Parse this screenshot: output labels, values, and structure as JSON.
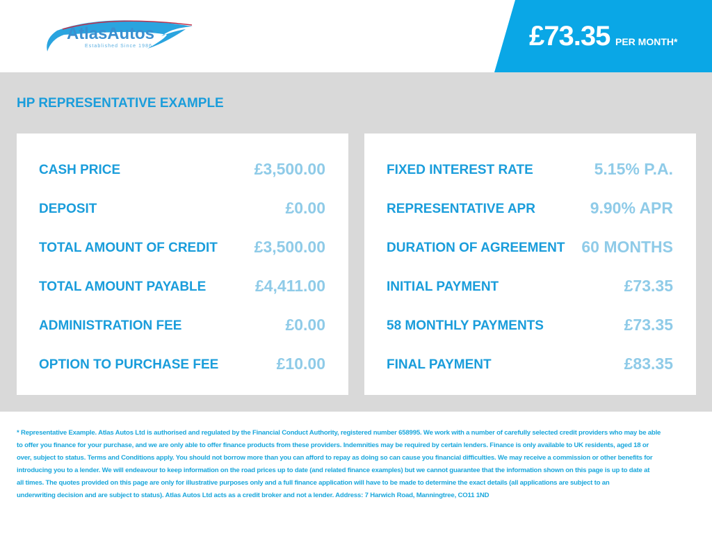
{
  "logo": {
    "name": "AtlasAutos",
    "tagline": "Established Since 1986"
  },
  "banner": {
    "price": "£73.35",
    "suffix": "PER MONTH*"
  },
  "title": "HP REPRESENTATIVE EXAMPLE",
  "left": [
    {
      "label": "CASH PRICE",
      "value": "£3,500.00"
    },
    {
      "label": "DEPOSIT",
      "value": "£0.00"
    },
    {
      "label": "TOTAL AMOUNT OF CREDIT",
      "value": "£3,500.00"
    },
    {
      "label": "TOTAL AMOUNT PAYABLE",
      "value": "£4,411.00"
    },
    {
      "label": "ADMINISTRATION FEE",
      "value": "£0.00"
    },
    {
      "label": "OPTION TO PURCHASE FEE",
      "value": "£10.00"
    }
  ],
  "right": [
    {
      "label": "FIXED INTEREST RATE",
      "value": "5.15% P.A."
    },
    {
      "label": "REPRESENTATIVE APR",
      "value": "9.90% APR"
    },
    {
      "label": "DURATION OF AGREEMENT",
      "value": "60 MONTHS"
    },
    {
      "label": "INITIAL PAYMENT",
      "value": "£73.35"
    },
    {
      "label": "58 MONTHLY PAYMENTS",
      "value": "£73.35"
    },
    {
      "label": "FINAL PAYMENT",
      "value": "£83.35"
    }
  ],
  "disclaimer": [
    "* Representative Example. Atlas Autos Ltd is authorised and regulated by the Financial Conduct Authority, registered number 658995. We work with a number of carefully selected credit providers who may be able",
    "to offer you finance for your purchase, and we are only able to offer finance products from these providers. Indemnities may be required by certain lenders. Finance is only available to UK residents, aged 18 or",
    "over, subject to status. Terms and Conditions apply. You should not borrow more than you can afford to repay as doing so can cause you financial difficulties. We may receive a commission or other benefits for",
    "introducing you to a lender. We will endeavour to keep information on the road prices up to date (and related finance examples) but we cannot guarantee that the information shown on this page is up to date at",
    "all times. The quotes provided on this page are only for illustrative purposes only and a full finance application will have to be made to determine the exact details (all applications are subject to an",
    "underwriting decision and are subject to status). Atlas Autos Ltd acts as a credit broker and not a lender. Address: 7 Harwich Road, Manningtree, CO11 1ND"
  ],
  "colors": {
    "brand": "#0aa7e6",
    "label": "#1a9ddb",
    "value": "#8fcbe8",
    "band": "#d9d9d9"
  }
}
